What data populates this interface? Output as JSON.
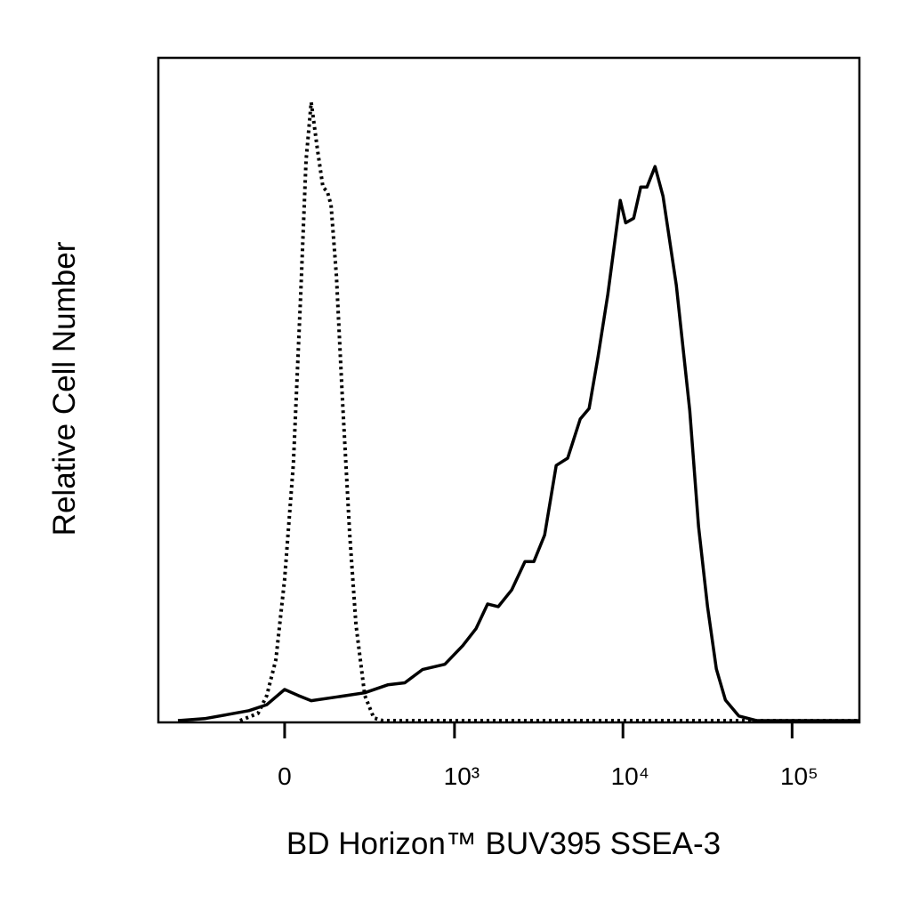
{
  "chart_data": {
    "type": "line",
    "x_label": "BD Horizon™ BUV395 SSEA-3",
    "y_label": "Relative Cell Number",
    "xscale": "asinh",
    "xlim": [
      -540,
      250000
    ],
    "ylim": [
      0,
      100
    ],
    "xticks": [
      0,
      {
        "value": 1000,
        "label": "10³"
      },
      {
        "value": 10000,
        "label": "10⁴"
      },
      {
        "value": 100000,
        "label": "10⁵"
      }
    ],
    "series": [
      {
        "color": "#000000",
        "dash": false,
        "x": [
          -404,
          -264,
          -174,
          -101,
          -49,
          0,
          37,
          74,
          159,
          264,
          382,
          494,
          638,
          874,
          1120,
          1348,
          1578,
          1828,
          2194,
          2632,
          2972,
          3442,
          4028,
          4714,
          5592,
          6312,
          7120,
          8140,
          9640,
          10380,
          11580,
          12740,
          13860,
          15480,
          17260,
          20680,
          24820,
          28000,
          31620,
          35680,
          40340,
          48380,
          61640,
          250000
        ],
        "values": [
          0,
          0.3,
          0.9,
          1.5,
          2.4,
          4.7,
          3.8,
          3.0,
          3.6,
          4.2,
          5.4,
          5.7,
          7.7,
          8.5,
          11.3,
          13.9,
          17.6,
          17.2,
          19.7,
          24.0,
          24.0,
          28.0,
          38.5,
          39.6,
          45.5,
          47.1,
          54.9,
          64.3,
          78.5,
          75.1,
          75.8,
          80.5,
          80.5,
          83.6,
          79.1,
          65.7,
          46.8,
          29.3,
          17.2,
          7.8,
          3.1,
          0.7,
          0,
          0
        ]
      },
      {
        "color": "#000000",
        "dash": true,
        "x": [
          -129,
          -74,
          -49,
          -24,
          0,
          24,
          44,
          59,
          74,
          93,
          109,
          123,
          135,
          153,
          174,
          201,
          226,
          264,
          307,
          355,
          250000
        ],
        "values": [
          0,
          1.1,
          3.8,
          9.2,
          21.3,
          38.8,
          64.3,
          84.5,
          93.3,
          85.9,
          80.5,
          79.8,
          77.8,
          67.0,
          48.5,
          28.3,
          14.5,
          3.8,
          0.4,
          0,
          0
        ]
      }
    ]
  }
}
